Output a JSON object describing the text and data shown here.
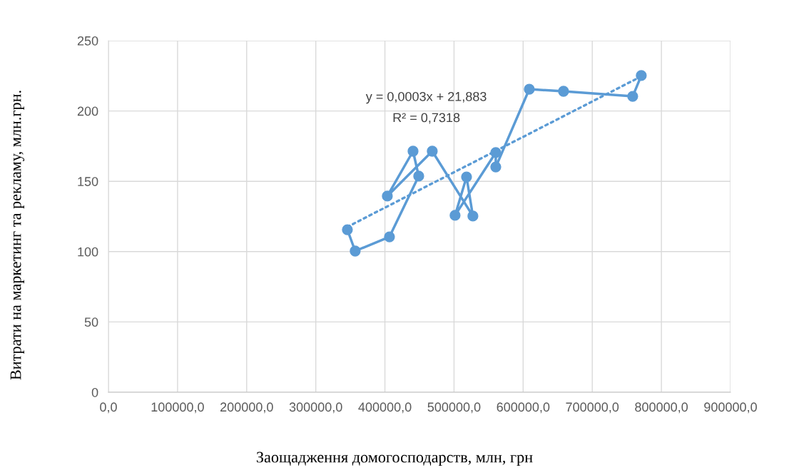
{
  "chart_data": {
    "type": "line",
    "xlabel": "Заощадження домогосподарств, млн, грн",
    "ylabel": "Витрати на маркетинг та рекламу, млн.грн.",
    "series": [
      {
        "marker": "circle",
        "color": "#5b9bd5",
        "x": [
          345700,
          357000,
          406600,
          448900,
          440700,
          403500,
          468500,
          527300,
          518100,
          501500,
          560400,
          560400,
          608900,
          658400,
          758500,
          770900
        ],
        "values": [
          115.6,
          100.4,
          110.5,
          153.7,
          171.4,
          139.5,
          171.4,
          125.3,
          153.1,
          125.8,
          170.4,
          160.2,
          215.5,
          214,
          210.4,
          225.2
        ]
      },
      {
        "marker": "none",
        "line_style": "dotted",
        "color": "#5b9bd5",
        "x": [
          345700,
          770900
        ],
        "values": [
          117.6,
          224.6
        ]
      }
    ],
    "annotations": [
      "y = 0,0003x + 21,883",
      "R² = 0,7318"
    ],
    "xlim": [
      0,
      900000
    ],
    "xticks": [
      {
        "value": 0,
        "label": "0,0"
      },
      {
        "value": 100000,
        "label": "100000,0"
      },
      {
        "value": 200000,
        "label": "200000,0"
      },
      {
        "value": 300000,
        "label": "300000,0"
      },
      {
        "value": 400000,
        "label": "400000,0"
      },
      {
        "value": 500000,
        "label": "500000,0"
      },
      {
        "value": 600000,
        "label": "600000,0"
      },
      {
        "value": 700000,
        "label": "700000,0"
      },
      {
        "value": 800000,
        "label": "800000,0"
      },
      {
        "value": 900000,
        "label": "900000,0"
      }
    ],
    "ylim": [
      0,
      250
    ],
    "yticks": [
      0,
      50,
      100,
      150,
      200,
      250
    ],
    "grid": true
  }
}
